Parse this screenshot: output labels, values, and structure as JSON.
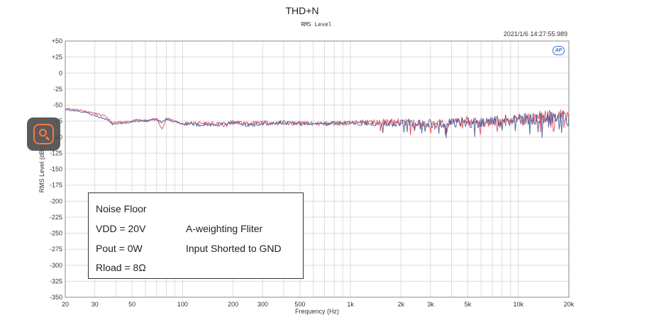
{
  "title": "THD+N",
  "subtitle": "RMS Level",
  "timestamp": "2021/1/6 14:27:55.989",
  "logo_text": "AP",
  "annotation": {
    "heading": "Noise Floor",
    "vdd": "VDD = 20V",
    "pout": "Pout = 0W",
    "rload": "Rload = 8Ω",
    "filter": "A-weighting Fliter",
    "input": "Input Shorted to GND"
  },
  "search_button": {
    "icon": "search-icon"
  },
  "chart_data": {
    "type": "line",
    "title": "THD+N",
    "subtitle": "RMS Level",
    "xlabel": "Frequency (Hz)",
    "ylabel": "RMS Level (dBr)",
    "xscale": "log",
    "xlim": [
      20,
      20000
    ],
    "ylim": [
      -350,
      50
    ],
    "grid": true,
    "x_ticks": [
      20,
      30,
      50,
      100,
      200,
      300,
      500,
      1000,
      2000,
      3000,
      5000,
      10000,
      20000
    ],
    "x_tick_labels": [
      "20",
      "30",
      "50",
      "100",
      "200",
      "300",
      "500",
      "1k",
      "2k",
      "3k",
      "5k",
      "10k",
      "20k"
    ],
    "y_ticks": [
      50,
      25,
      0,
      -25,
      -50,
      -75,
      -100,
      -125,
      -150,
      -175,
      -200,
      -225,
      -250,
      -275,
      -300,
      -325,
      -350
    ],
    "y_tick_labels": [
      "+50",
      "+25",
      "0",
      "-25",
      "-50",
      "-75",
      "-100",
      "-125",
      "-150",
      "-175",
      "-200",
      "-225",
      "-250",
      "-275",
      "-300",
      "-325",
      "-350"
    ],
    "series": [
      {
        "color": "#e0404c",
        "x": [
          20,
          25,
          30,
          35,
          38,
          45,
          55,
          60,
          70,
          75,
          80,
          90,
          100,
          120,
          150,
          180,
          200,
          250,
          300,
          400,
          500,
          700,
          1000,
          1500,
          2000,
          3000,
          5000,
          7000,
          10000,
          15000,
          20000
        ],
        "y": [
          -55,
          -58,
          -63,
          -68,
          -78,
          -76,
          -73,
          -76,
          -70,
          -88,
          -71,
          -74,
          -80,
          -78,
          -79,
          -82,
          -76,
          -79,
          -77,
          -79,
          -78,
          -80,
          -78,
          -77,
          -77,
          -80,
          -76,
          -77,
          -72,
          -68,
          -66
        ]
      },
      {
        "color": "#3e4f8f",
        "x": [
          20,
          25,
          30,
          35,
          38,
          45,
          55,
          60,
          70,
          75,
          80,
          90,
          100,
          120,
          150,
          180,
          200,
          250,
          300,
          400,
          500,
          700,
          1000,
          1500,
          2000,
          3000,
          5000,
          7000,
          10000,
          15000,
          20000
        ],
        "y": [
          -57,
          -60,
          -66,
          -72,
          -80,
          -78,
          -75,
          -74,
          -73,
          -77,
          -72,
          -77,
          -78,
          -80,
          -81,
          -79,
          -77,
          -81,
          -79,
          -77,
          -79,
          -79,
          -77,
          -79,
          -78,
          -79,
          -77,
          -76,
          -73,
          -70,
          -69
        ]
      }
    ]
  }
}
